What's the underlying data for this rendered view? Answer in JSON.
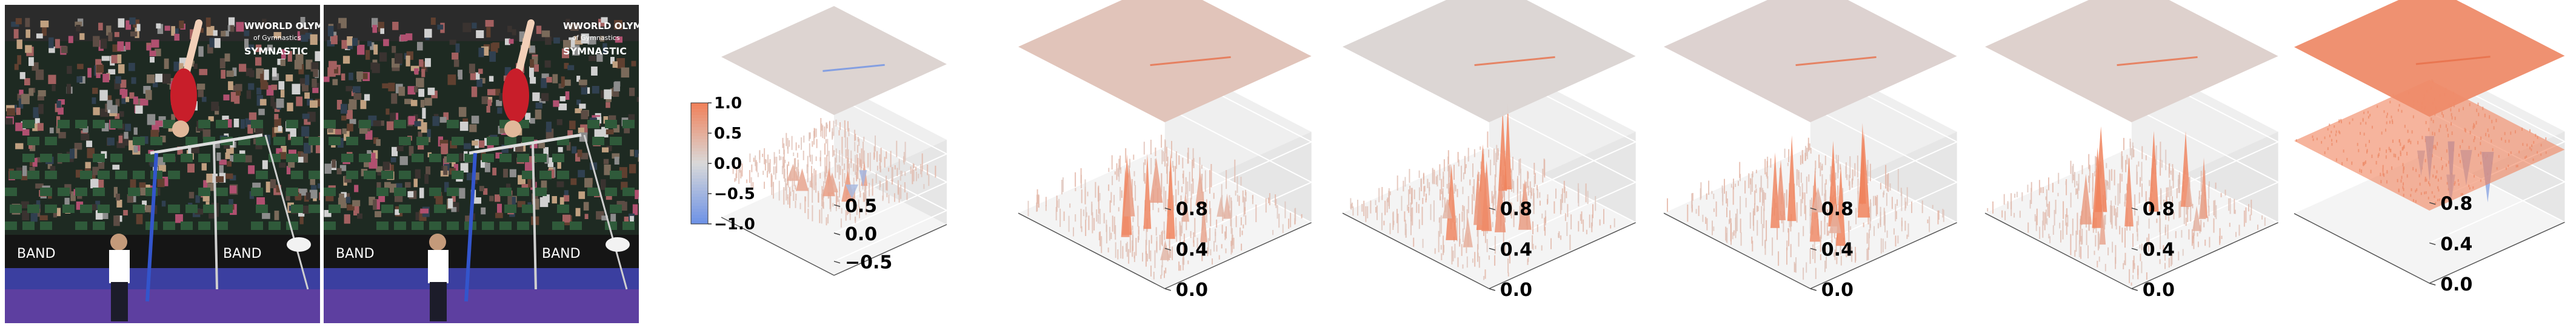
{
  "images": [
    {
      "name": "input-frame-1",
      "overlay_text": [
        "WWORLD OLYMPIC",
        "of Gymnastics",
        "SYMNASTIC"
      ],
      "ad_text": "BAND"
    },
    {
      "name": "input-frame-2",
      "overlay_text": [
        "WWORLD OLYMPIC",
        "of Gymnastics",
        "SYMNASTIC"
      ],
      "ad_text": "BAND"
    }
  ],
  "colors": {
    "positive": "#f0825c",
    "negative": "#6f93e6",
    "neutral": "#d9d9d9",
    "pane": "#efefef"
  },
  "chart_data": [
    {
      "type": "surface3d",
      "colorbar": {
        "ticks": [
          "1.0",
          "0.5",
          "0.0",
          "−0.5",
          "−1.0"
        ],
        "range": [
          -1.0,
          1.0
        ]
      },
      "zticks": [
        "0.5",
        "0.0",
        "−0.5"
      ],
      "zlim": [
        -0.75,
        0.75
      ],
      "surface_peak": 0.55,
      "top_plane_intensity": 0.08,
      "spikes": [
        0.55,
        0.5,
        0.45,
        0.4,
        0.35,
        -0.3,
        -0.25,
        0.3
      ]
    },
    {
      "type": "surface3d",
      "zticks": [
        "0.8",
        "0.4",
        "0.0"
      ],
      "zlim": [
        0.0,
        0.9
      ],
      "top_plane_intensity": 0.28,
      "spikes": [
        0.85,
        0.8,
        0.75,
        0.7,
        0.5,
        0.45,
        0.4,
        0.35,
        0.3,
        0.25,
        0.2,
        0.2
      ]
    },
    {
      "type": "surface3d",
      "zticks": [
        "0.8",
        "0.4",
        "0.0"
      ],
      "zlim": [
        0.0,
        0.9
      ],
      "top_plane_intensity": 0.06,
      "spikes": [
        0.85,
        0.85,
        0.8,
        0.75,
        0.7,
        0.6,
        0.55,
        0.5,
        0.3,
        0.2
      ]
    },
    {
      "type": "surface3d",
      "zticks": [
        "0.8",
        "0.4",
        "0.0"
      ],
      "zlim": [
        0.0,
        0.9
      ],
      "top_plane_intensity": 0.1,
      "spikes": [
        0.85,
        0.85,
        0.85,
        0.8,
        0.8,
        0.75,
        0.7,
        0.6,
        0.3,
        0.25
      ]
    },
    {
      "type": "surface3d",
      "zticks": [
        "0.8",
        "0.4",
        "0.0"
      ],
      "zlim": [
        0.0,
        0.9
      ],
      "top_plane_intensity": 0.12,
      "spikes": [
        0.85,
        0.8,
        0.8,
        0.75,
        0.7,
        0.6,
        0.5,
        0.4,
        0.35,
        0.3,
        0.25
      ]
    },
    {
      "type": "surface3d",
      "zticks": [
        "0.8",
        "0.4",
        "0.0"
      ],
      "zlim": [
        0.0,
        0.9
      ],
      "top_plane_intensity": 0.9,
      "surface_level": 0.72,
      "spikes": [
        -0.55,
        -0.5,
        -0.45,
        -0.35,
        -0.3,
        -0.25
      ]
    }
  ]
}
